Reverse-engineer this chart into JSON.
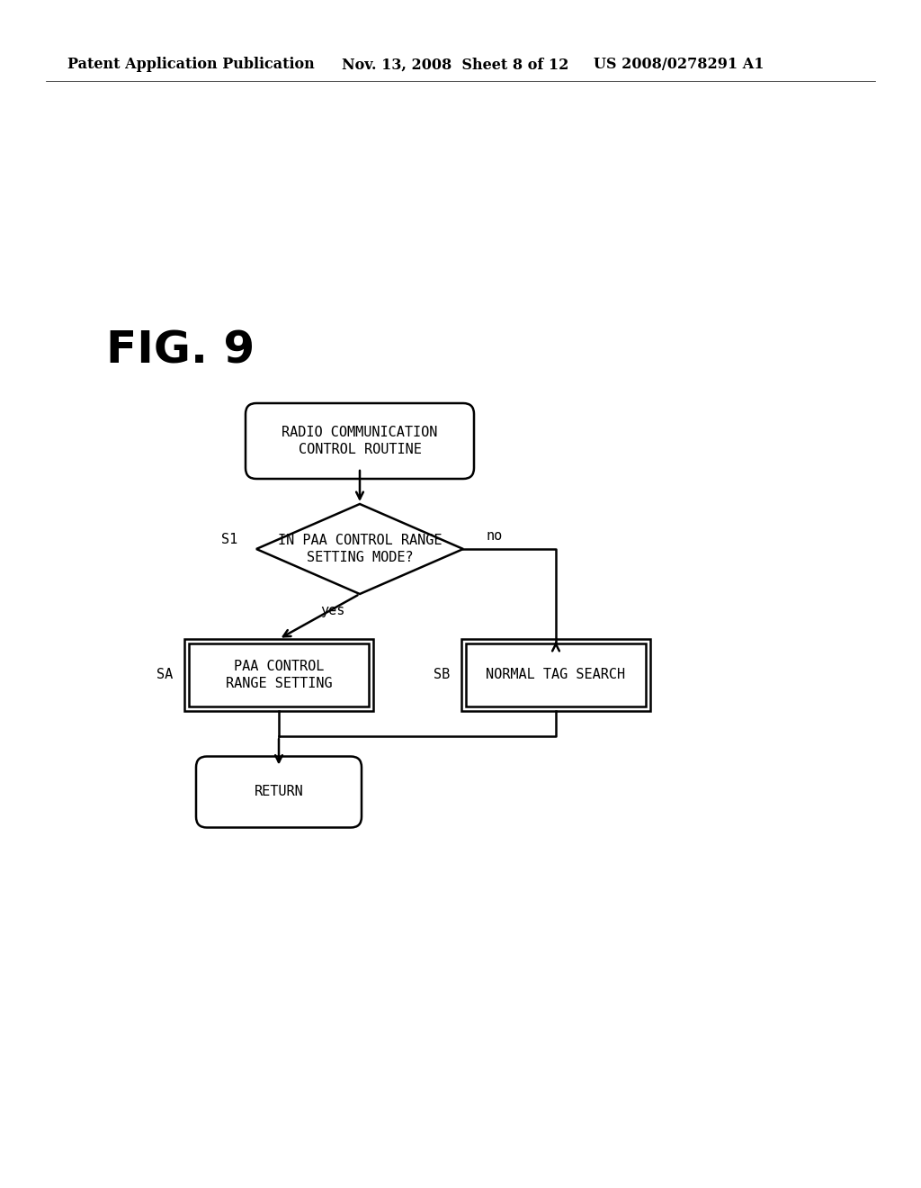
{
  "bg_color": "#ffffff",
  "header_left": "Patent Application Publication",
  "header_mid": "Nov. 13, 2008  Sheet 8 of 12",
  "header_right": "US 2008/0278291 A1",
  "fig_label": "FIG. 9",
  "start_text": "RADIO COMMUNICATION\nCONTROL ROUTINE",
  "diamond_text": "IN PAA CONTROL RANGE\nSETTING MODE?",
  "sa_text": "PAA CONTROL\nRANGE SETTING",
  "sb_text": "NORMAL TAG SEARCH",
  "return_text": "RETURN",
  "label_s1": "S1",
  "label_sa": "SA",
  "label_sb": "SB",
  "label_yes": "yes",
  "label_no": "no"
}
